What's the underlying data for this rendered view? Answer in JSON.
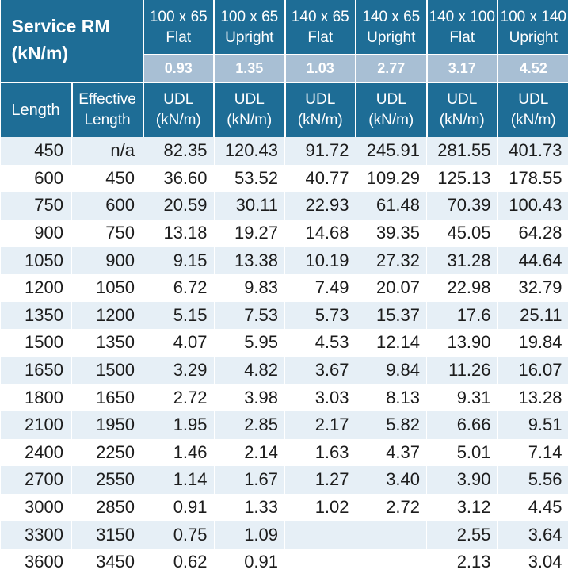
{
  "header": {
    "title_line1": "Service RM",
    "title_line2": "(kN/m)",
    "length_label": "Length",
    "effective_label_line1": "Effective",
    "effective_label_line2": "Length"
  },
  "columns": [
    {
      "size": "100 x 65",
      "orientation": "Flat",
      "rm": "0.93",
      "udl_line1": "UDL",
      "udl_line2": "(kN/m)"
    },
    {
      "size": "100 x 65",
      "orientation": "Upright",
      "rm": "1.35",
      "udl_line1": "UDL",
      "udl_line2": "(kN/m)"
    },
    {
      "size": "140 x 65",
      "orientation": "Flat",
      "rm": "1.03",
      "udl_line1": "UDL",
      "udl_line2": "(kN/m)"
    },
    {
      "size": "140 x 65",
      "orientation": "Upright",
      "rm": "2.77",
      "udl_line1": "UDL",
      "udl_line2": "(kN/m)"
    },
    {
      "size": "140 x 100",
      "orientation": "Flat",
      "rm": "3.17",
      "udl_line1": "UDL",
      "udl_line2": "(kN/m)"
    },
    {
      "size": "100 x 140",
      "orientation": "Upright",
      "rm": "4.52",
      "udl_line1": "UDL",
      "udl_line2": "(kN/m)"
    }
  ],
  "rows": [
    {
      "length": "450",
      "effective": "n/a",
      "values": [
        "82.35",
        "120.43",
        "91.72",
        "245.91",
        "281.55",
        "401.73"
      ]
    },
    {
      "length": "600",
      "effective": "450",
      "values": [
        "36.60",
        "53.52",
        "40.77",
        "109.29",
        "125.13",
        "178.55"
      ]
    },
    {
      "length": "750",
      "effective": "600",
      "values": [
        "20.59",
        "30.11",
        "22.93",
        "61.48",
        "70.39",
        "100.43"
      ]
    },
    {
      "length": "900",
      "effective": "750",
      "values": [
        "13.18",
        "19.27",
        "14.68",
        "39.35",
        "45.05",
        "64.28"
      ]
    },
    {
      "length": "1050",
      "effective": "900",
      "values": [
        "9.15",
        "13.38",
        "10.19",
        "27.32",
        "31.28",
        "44.64"
      ]
    },
    {
      "length": "1200",
      "effective": "1050",
      "values": [
        "6.72",
        "9.83",
        "7.49",
        "20.07",
        "22.98",
        "32.79"
      ]
    },
    {
      "length": "1350",
      "effective": "1200",
      "values": [
        "5.15",
        "7.53",
        "5.73",
        "15.37",
        "17.6",
        "25.11"
      ]
    },
    {
      "length": "1500",
      "effective": "1350",
      "values": [
        "4.07",
        "5.95",
        "4.53",
        "12.14",
        "13.90",
        "19.84"
      ]
    },
    {
      "length": "1650",
      "effective": "1500",
      "values": [
        "3.29",
        "4.82",
        "3.67",
        "9.84",
        "11.26",
        "16.07"
      ]
    },
    {
      "length": "1800",
      "effective": "1650",
      "values": [
        "2.72",
        "3.98",
        "3.03",
        "8.13",
        "9.31",
        "13.28"
      ]
    },
    {
      "length": "2100",
      "effective": "1950",
      "values": [
        "1.95",
        "2.85",
        "2.17",
        "5.82",
        "6.66",
        "9.51"
      ]
    },
    {
      "length": "2400",
      "effective": "2250",
      "values": [
        "1.46",
        "2.14",
        "1.63",
        "4.37",
        "5.01",
        "7.14"
      ]
    },
    {
      "length": "2700",
      "effective": "2550",
      "values": [
        "1.14",
        "1.67",
        "1.27",
        "3.40",
        "3.90",
        "5.56"
      ]
    },
    {
      "length": "3000",
      "effective": "2850",
      "values": [
        "0.91",
        "1.33",
        "1.02",
        "2.72",
        "3.12",
        "4.45"
      ]
    },
    {
      "length": "3300",
      "effective": "3150",
      "values": [
        "0.75",
        "1.09",
        "",
        "",
        "2.55",
        "3.64"
      ]
    },
    {
      "length": "3600",
      "effective": "3450",
      "values": [
        "0.62",
        "0.91",
        "",
        "",
        "2.13",
        "3.04"
      ]
    }
  ],
  "colors": {
    "header_blue": "#1e6d96",
    "rm_row": "#a8bfd4",
    "stripe": "#e6eff6"
  }
}
